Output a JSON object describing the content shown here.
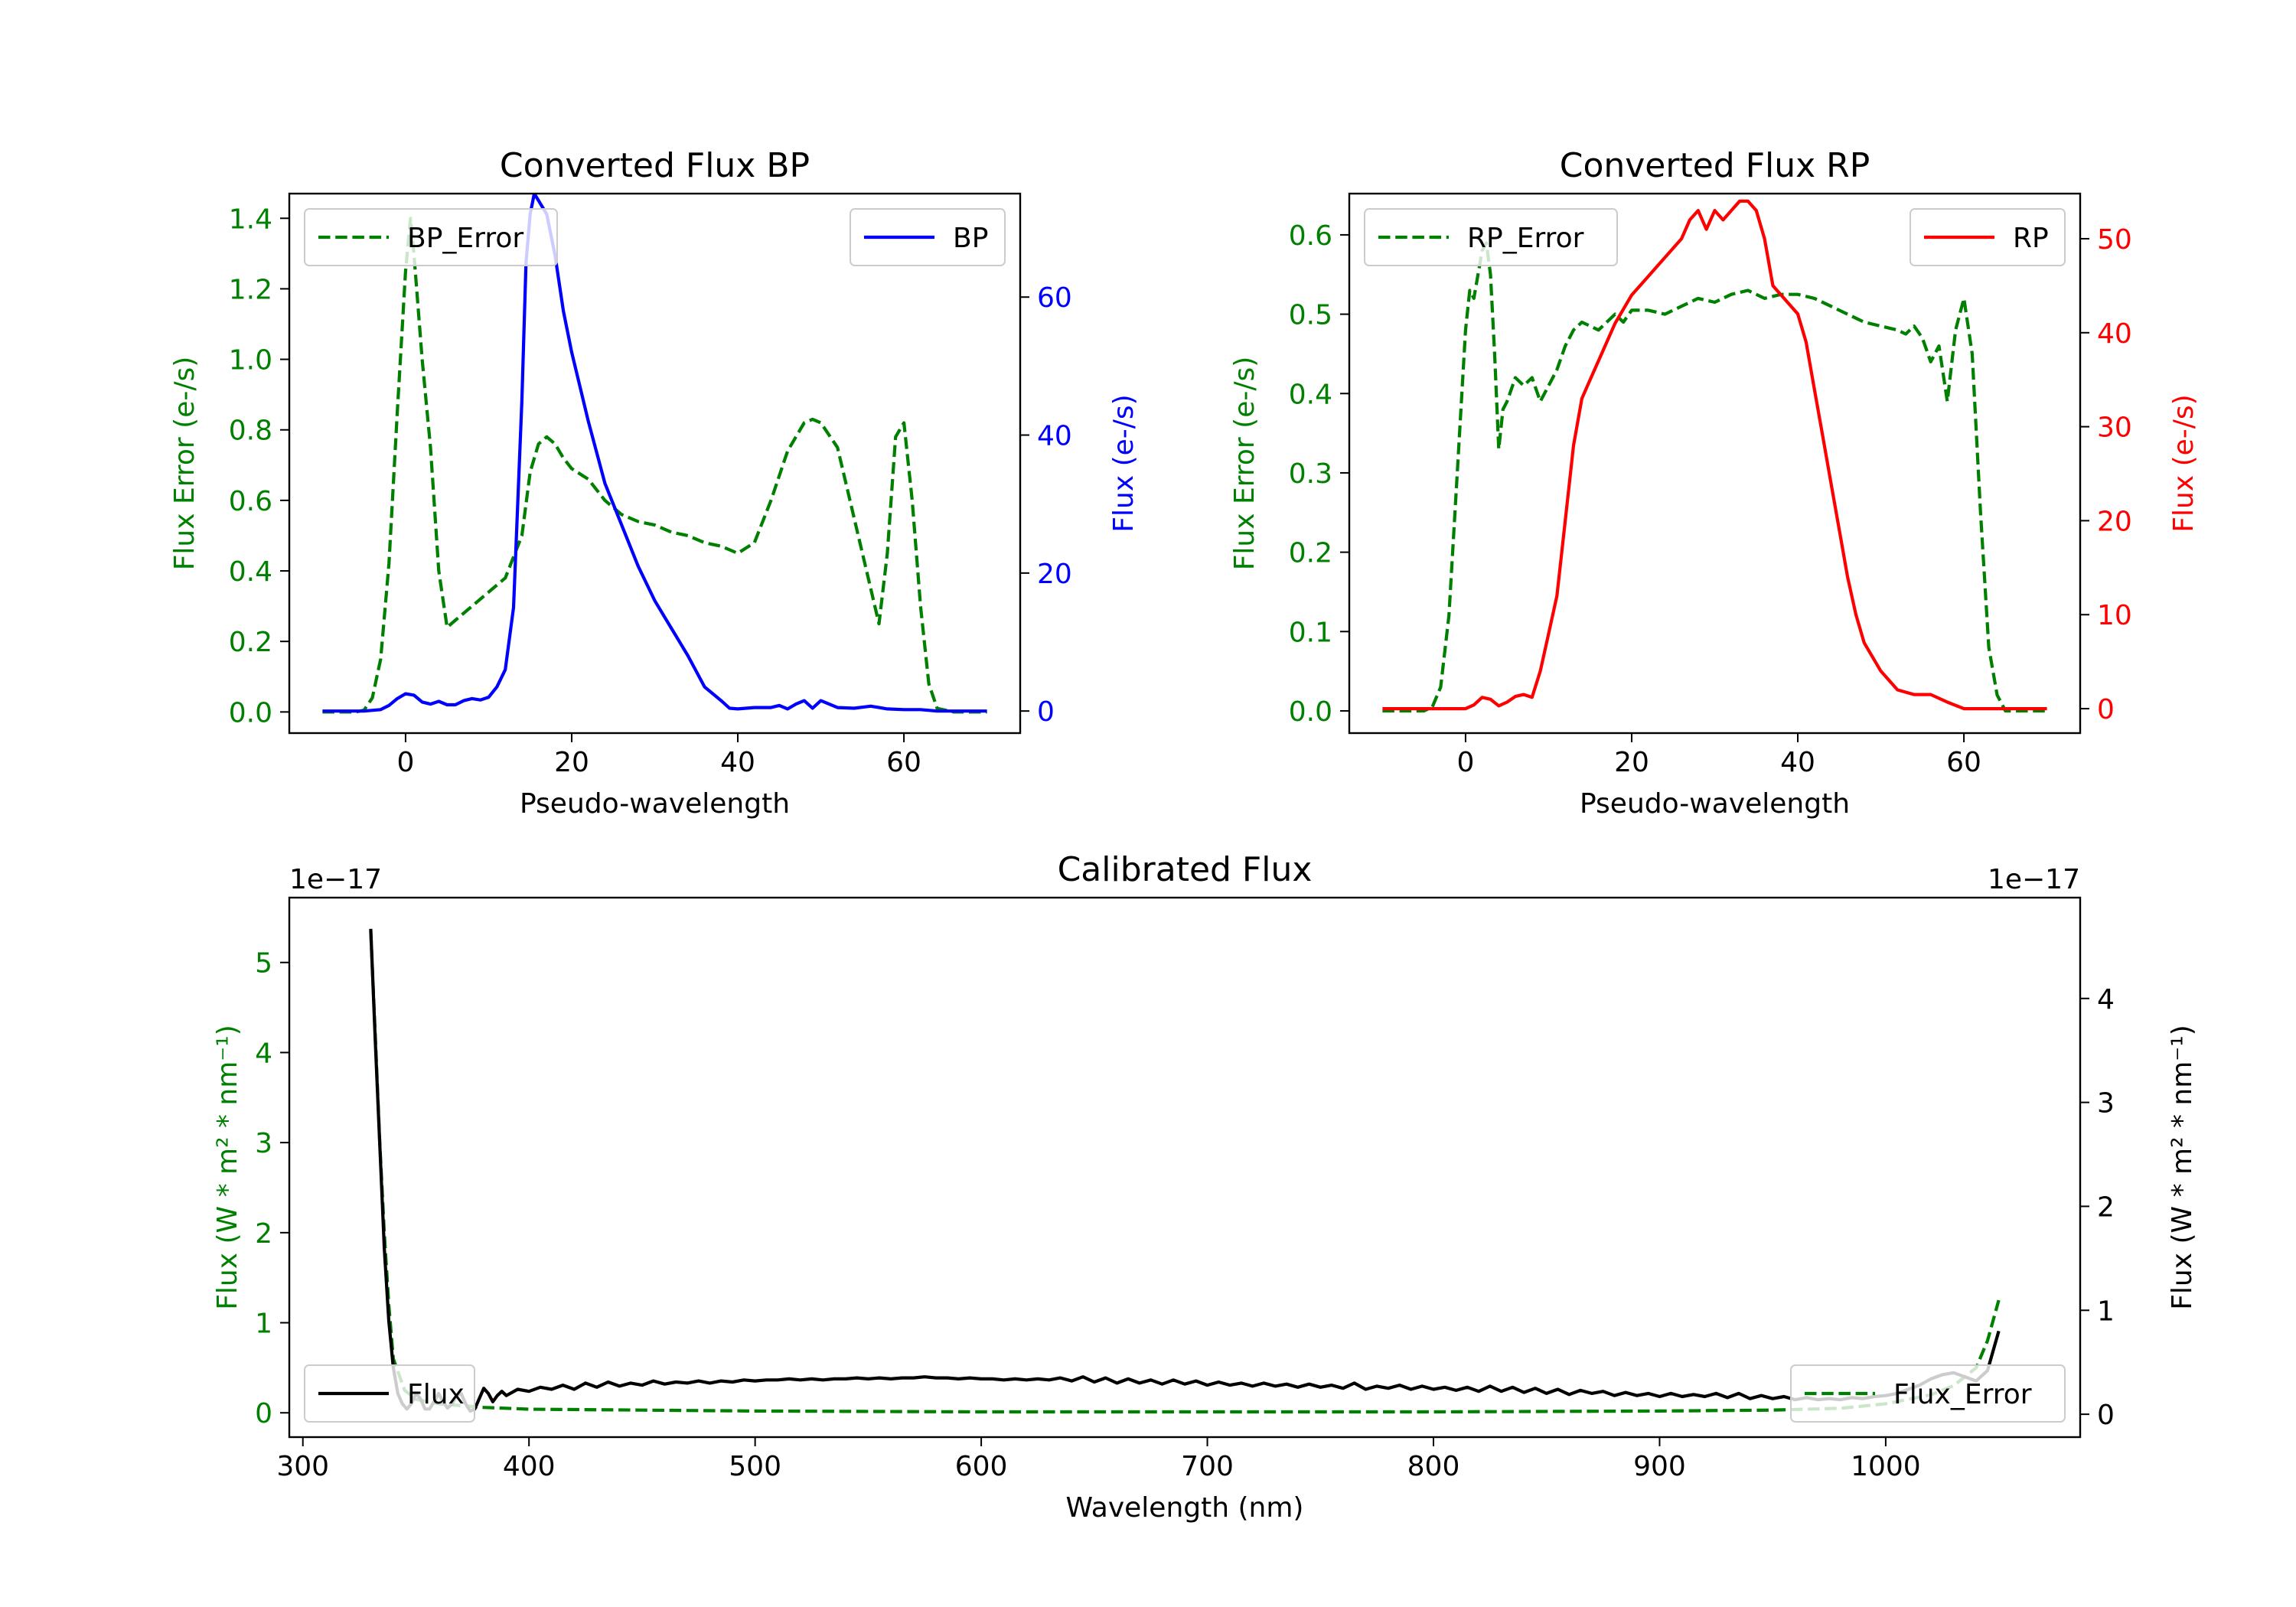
{
  "colors": {
    "error": "#008000",
    "bp": "#0000ff",
    "rp": "#ff0000",
    "flux": "#000000"
  },
  "chart_data": [
    {
      "type": "line",
      "id": "bp",
      "title": "Converted Flux BP",
      "xlabel": "Pseudo-wavelength",
      "ylabel_left": "Flux Error (e-/s)",
      "ylabel_right": "Flux (e-/s)",
      "xlim": [
        -14,
        74
      ],
      "ylim_left": [
        -0.06,
        1.47
      ],
      "ylim_right": [
        -3.2,
        75
      ],
      "xticks": [
        0,
        20,
        40,
        60
      ],
      "yticks_left": [
        0.0,
        0.2,
        0.4,
        0.6,
        0.8,
        1.0,
        1.2,
        1.4
      ],
      "yticks_right": [
        0,
        20,
        40,
        60
      ],
      "legend_left": "BP_Error",
      "legend_right": "BP",
      "series": [
        {
          "name": "BP_Error",
          "axis": "left",
          "style": "dashed",
          "color": "#008000",
          "x": [
            -10,
            -6,
            -5,
            -4,
            -3,
            -2,
            -1,
            0,
            0.6,
            1,
            2,
            3,
            4,
            5,
            6,
            8,
            10,
            12,
            14,
            15,
            16,
            17,
            18,
            19,
            20,
            22,
            24,
            26,
            28,
            30,
            32,
            34,
            36,
            38,
            40,
            42,
            44,
            46,
            48,
            49,
            50,
            52,
            54,
            56,
            57,
            58,
            59,
            60,
            61,
            62,
            63,
            64,
            66,
            70
          ],
          "values": [
            0,
            0,
            0.005,
            0.04,
            0.15,
            0.42,
            0.85,
            1.25,
            1.4,
            1.3,
            1.0,
            0.75,
            0.4,
            0.24,
            0.26,
            0.3,
            0.34,
            0.38,
            0.5,
            0.68,
            0.76,
            0.78,
            0.76,
            0.72,
            0.69,
            0.66,
            0.6,
            0.56,
            0.54,
            0.53,
            0.51,
            0.5,
            0.48,
            0.47,
            0.45,
            0.48,
            0.6,
            0.74,
            0.82,
            0.83,
            0.82,
            0.75,
            0.55,
            0.35,
            0.25,
            0.45,
            0.78,
            0.82,
            0.6,
            0.3,
            0.08,
            0.01,
            0,
            0
          ]
        },
        {
          "name": "BP",
          "axis": "right",
          "style": "solid",
          "color": "#0000ff",
          "x": [
            -10,
            -5,
            -3,
            -2,
            -1,
            0,
            1,
            2,
            3,
            4,
            5,
            6,
            7,
            8,
            9,
            10,
            11,
            12,
            13,
            14,
            14.5,
            15,
            15.5,
            16,
            17,
            18,
            19,
            20,
            22,
            24,
            26,
            28,
            30,
            32,
            34,
            36,
            38,
            39,
            40,
            42,
            44,
            45,
            46,
            47,
            48,
            49,
            50,
            51,
            52,
            54,
            56,
            58,
            60,
            62,
            64,
            66,
            70
          ],
          "values": [
            0,
            0,
            0.2,
            0.8,
            1.8,
            2.5,
            2.3,
            1.3,
            1.0,
            1.4,
            0.9,
            0.9,
            1.5,
            1.8,
            1.6,
            2.0,
            3.5,
            6,
            15,
            45,
            65,
            72,
            75,
            74,
            72,
            66,
            58,
            52,
            42,
            33,
            27,
            21,
            16,
            12,
            8,
            3.5,
            1.5,
            0.4,
            0.3,
            0.5,
            0.5,
            0.8,
            0.3,
            1.0,
            1.5,
            0.4,
            1.5,
            1.0,
            0.5,
            0.4,
            0.7,
            0.3,
            0.2,
            0.2,
            0,
            0,
            0
          ]
        }
      ]
    },
    {
      "type": "line",
      "id": "rp",
      "title": "Converted Flux RP",
      "xlabel": "Pseudo-wavelength",
      "ylabel_left": "Flux Error (e-/s)",
      "ylabel_right": "Flux (e-/s)",
      "xlim": [
        -14,
        74
      ],
      "ylim_left": [
        -0.028,
        0.652
      ],
      "ylim_right": [
        -2.6,
        54.8
      ],
      "xticks": [
        0,
        20,
        40,
        60
      ],
      "yticks_left": [
        0.0,
        0.1,
        0.2,
        0.3,
        0.4,
        0.5,
        0.6
      ],
      "yticks_right": [
        0,
        10,
        20,
        30,
        40,
        50
      ],
      "legend_left": "RP_Error",
      "legend_right": "RP",
      "series": [
        {
          "name": "RP_Error",
          "axis": "left",
          "style": "dashed",
          "color": "#008000",
          "x": [
            -10,
            -5,
            -4,
            -3,
            -2,
            -1,
            0,
            0.5,
            1,
            1.5,
            2,
            2.5,
            3,
            3.5,
            4,
            4.5,
            5,
            6,
            7,
            8,
            9,
            10,
            11,
            12,
            13,
            14,
            15,
            16,
            17,
            18,
            19,
            20,
            22,
            24,
            26,
            28,
            30,
            32,
            34,
            36,
            38,
            40,
            42,
            44,
            46,
            48,
            50,
            52,
            53,
            54,
            55,
            56,
            57,
            58,
            59,
            60,
            61,
            62,
            63,
            64,
            65,
            70
          ],
          "values": [
            0,
            0,
            0.005,
            0.03,
            0.12,
            0.3,
            0.48,
            0.53,
            0.52,
            0.55,
            0.58,
            0.59,
            0.55,
            0.45,
            0.33,
            0.38,
            0.39,
            0.42,
            0.41,
            0.42,
            0.39,
            0.41,
            0.43,
            0.46,
            0.48,
            0.49,
            0.485,
            0.48,
            0.49,
            0.5,
            0.49,
            0.505,
            0.505,
            0.5,
            0.51,
            0.52,
            0.515,
            0.525,
            0.53,
            0.52,
            0.525,
            0.525,
            0.52,
            0.51,
            0.5,
            0.49,
            0.485,
            0.48,
            0.475,
            0.485,
            0.47,
            0.44,
            0.46,
            0.39,
            0.48,
            0.52,
            0.45,
            0.25,
            0.08,
            0.02,
            0,
            0
          ]
        },
        {
          "name": "RP",
          "axis": "right",
          "style": "solid",
          "color": "#ff0000",
          "x": [
            -10,
            0,
            1,
            2,
            3,
            4,
            5,
            6,
            7,
            8,
            9,
            10,
            11,
            12,
            13,
            14,
            15,
            16,
            18,
            20,
            22,
            24,
            26,
            27,
            28,
            29,
            30,
            31,
            32,
            33,
            34,
            35,
            36,
            37,
            38,
            40,
            41,
            42,
            43,
            44,
            45,
            46,
            47,
            48,
            50,
            52,
            54,
            56,
            58,
            60,
            62,
            70
          ],
          "values": [
            0,
            0,
            0.4,
            1.2,
            1.0,
            0.3,
            0.7,
            1.3,
            1.5,
            1.2,
            4,
            8,
            12,
            20,
            28,
            33,
            35,
            37,
            41,
            44,
            46,
            48,
            50,
            52,
            53,
            51,
            53,
            52,
            53,
            54,
            54,
            53,
            50,
            45,
            44,
            42,
            39,
            34,
            29,
            24,
            19,
            14,
            10,
            7,
            4,
            2,
            1.5,
            1.5,
            0.7,
            0,
            0,
            0
          ]
        }
      ]
    },
    {
      "type": "line",
      "id": "calibrated",
      "title": "Calibrated Flux",
      "xlabel": "Wavelength (nm)",
      "ylabel_left": "Flux (W * m² * nm⁻¹)",
      "ylabel_right": "Flux (W * m² * nm⁻¹)",
      "offset_left": "1e−17",
      "offset_right": "1e−17",
      "xlim": [
        294,
        1086
      ],
      "ylim_left": [
        -0.27,
        5.72
      ],
      "ylim_right": [
        -0.22,
        4.97
      ],
      "xticks": [
        300,
        400,
        500,
        600,
        700,
        800,
        900,
        1000
      ],
      "yticks_left": [
        0,
        1,
        2,
        3,
        4,
        5
      ],
      "yticks_right": [
        0,
        1,
        2,
        3,
        4
      ],
      "legend_left": "Flux",
      "legend_right": "Flux_Error",
      "series": [
        {
          "name": "Flux_Error",
          "axis": "left",
          "style": "dashed",
          "color": "#008000",
          "x": [
            330,
            332,
            334,
            336,
            338,
            340,
            345,
            350,
            360,
            370,
            380,
            390,
            400,
            450,
            500,
            600,
            700,
            800,
            900,
            950,
            980,
            1000,
            1020,
            1030,
            1040,
            1045,
            1050
          ],
          "values": [
            5.35,
            4.2,
            3.0,
            2.0,
            1.2,
            0.6,
            0.25,
            0.15,
            0.1,
            0.08,
            0.06,
            0.05,
            0.04,
            0.03,
            0.02,
            0.01,
            0.01,
            0.01,
            0.02,
            0.03,
            0.05,
            0.1,
            0.2,
            0.3,
            0.5,
            0.8,
            1.25
          ]
        },
        {
          "name": "Flux",
          "axis": "right",
          "style": "solid",
          "color": "#000000",
          "x": [
            330,
            332,
            334,
            336,
            338,
            340,
            342,
            344,
            346,
            348,
            350,
            352,
            354,
            356,
            358,
            360,
            362,
            364,
            366,
            368,
            370,
            372,
            374,
            376,
            378,
            380,
            382,
            384,
            386,
            388,
            390,
            395,
            400,
            405,
            410,
            415,
            420,
            425,
            430,
            435,
            440,
            445,
            450,
            455,
            460,
            465,
            470,
            475,
            480,
            485,
            490,
            495,
            500,
            505,
            510,
            515,
            520,
            525,
            530,
            535,
            540,
            545,
            550,
            555,
            560,
            565,
            570,
            575,
            580,
            585,
            590,
            595,
            600,
            605,
            610,
            615,
            620,
            625,
            630,
            635,
            640,
            645,
            650,
            655,
            660,
            665,
            670,
            675,
            680,
            685,
            690,
            695,
            700,
            705,
            710,
            715,
            720,
            725,
            730,
            735,
            740,
            745,
            750,
            755,
            760,
            765,
            770,
            775,
            780,
            785,
            790,
            795,
            800,
            805,
            810,
            815,
            820,
            825,
            830,
            835,
            840,
            845,
            850,
            855,
            860,
            865,
            870,
            875,
            880,
            885,
            890,
            895,
            900,
            905,
            910,
            915,
            920,
            925,
            930,
            935,
            940,
            945,
            950,
            955,
            960,
            965,
            970,
            975,
            980,
            985,
            990,
            995,
            1000,
            1005,
            1010,
            1015,
            1020,
            1025,
            1030,
            1035,
            1040,
            1045,
            1050
          ],
          "values": [
            4.67,
            3.6,
            2.6,
            1.6,
            0.9,
            0.45,
            0.2,
            0.1,
            0.05,
            0.1,
            0.2,
            0.15,
            0.05,
            0.05,
            0.12,
            0.2,
            0.12,
            0.06,
            0.1,
            0.18,
            0.2,
            0.1,
            0.03,
            0.05,
            0.15,
            0.25,
            0.2,
            0.12,
            0.18,
            0.22,
            0.18,
            0.24,
            0.22,
            0.26,
            0.24,
            0.28,
            0.24,
            0.3,
            0.26,
            0.31,
            0.27,
            0.3,
            0.28,
            0.32,
            0.29,
            0.31,
            0.3,
            0.32,
            0.3,
            0.32,
            0.31,
            0.33,
            0.32,
            0.33,
            0.33,
            0.34,
            0.33,
            0.34,
            0.33,
            0.34,
            0.34,
            0.35,
            0.34,
            0.35,
            0.34,
            0.35,
            0.35,
            0.36,
            0.35,
            0.35,
            0.34,
            0.35,
            0.34,
            0.34,
            0.33,
            0.34,
            0.33,
            0.34,
            0.33,
            0.35,
            0.32,
            0.36,
            0.31,
            0.35,
            0.3,
            0.34,
            0.3,
            0.33,
            0.29,
            0.33,
            0.29,
            0.32,
            0.28,
            0.31,
            0.28,
            0.3,
            0.27,
            0.3,
            0.27,
            0.29,
            0.26,
            0.29,
            0.26,
            0.28,
            0.25,
            0.3,
            0.24,
            0.27,
            0.25,
            0.28,
            0.24,
            0.27,
            0.24,
            0.26,
            0.23,
            0.26,
            0.22,
            0.27,
            0.22,
            0.26,
            0.21,
            0.25,
            0.2,
            0.24,
            0.19,
            0.23,
            0.2,
            0.22,
            0.18,
            0.21,
            0.18,
            0.2,
            0.17,
            0.2,
            0.17,
            0.19,
            0.17,
            0.2,
            0.16,
            0.2,
            0.15,
            0.18,
            0.15,
            0.17,
            0.14,
            0.16,
            0.14,
            0.15,
            0.14,
            0.16,
            0.15,
            0.17,
            0.18,
            0.2,
            0.24,
            0.28,
            0.34,
            0.38,
            0.4,
            0.36,
            0.32,
            0.42,
            0.8
          ]
        }
      ]
    }
  ]
}
